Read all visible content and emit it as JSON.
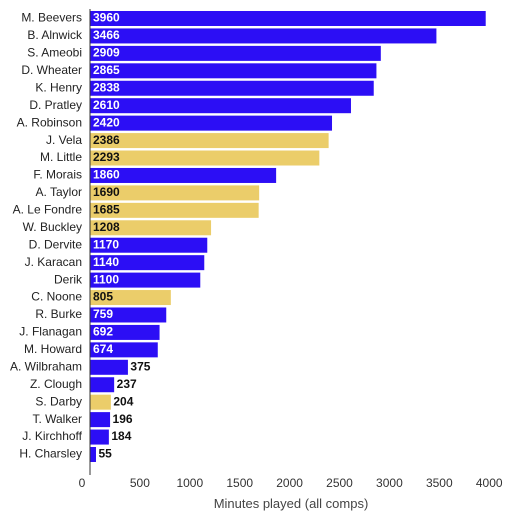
{
  "chart_data": {
    "type": "bar",
    "orientation": "horizontal",
    "xlabel": "Minutes played (all comps)",
    "xlim": [
      0,
      4250
    ],
    "xticks": [
      0,
      500,
      1000,
      1500,
      2000,
      2500,
      3000,
      3500,
      4000
    ],
    "grid": false,
    "colors": {
      "primary": "#2c0ef5",
      "highlight": "#ebcd6a"
    },
    "categories": [
      "M. Beevers",
      "B. Alnwick",
      "S. Ameobi",
      "D. Wheater",
      "K. Henry",
      "D. Pratley",
      "A. Robinson",
      "J. Vela",
      "M. Little",
      "F. Morais",
      "A. Taylor",
      "A. Le Fondre",
      "W. Buckley",
      "D. Dervite",
      "J. Karacan",
      "Derik",
      "C. Noone",
      "R. Burke",
      "J. Flanagan",
      "M. Howard",
      "A. Wilbraham",
      "Z. Clough",
      "S. Darby",
      "T. Walker",
      "J. Kirchhoff",
      "H. Charsley"
    ],
    "values": [
      3960,
      3466,
      2909,
      2865,
      2838,
      2610,
      2420,
      2386,
      2293,
      1860,
      1690,
      1685,
      1208,
      1170,
      1140,
      1100,
      805,
      759,
      692,
      674,
      375,
      237,
      204,
      196,
      184,
      55
    ],
    "highlighted": [
      false,
      false,
      false,
      false,
      false,
      false,
      false,
      true,
      true,
      false,
      true,
      true,
      true,
      false,
      false,
      false,
      true,
      false,
      false,
      false,
      false,
      false,
      true,
      false,
      false,
      false
    ]
  }
}
